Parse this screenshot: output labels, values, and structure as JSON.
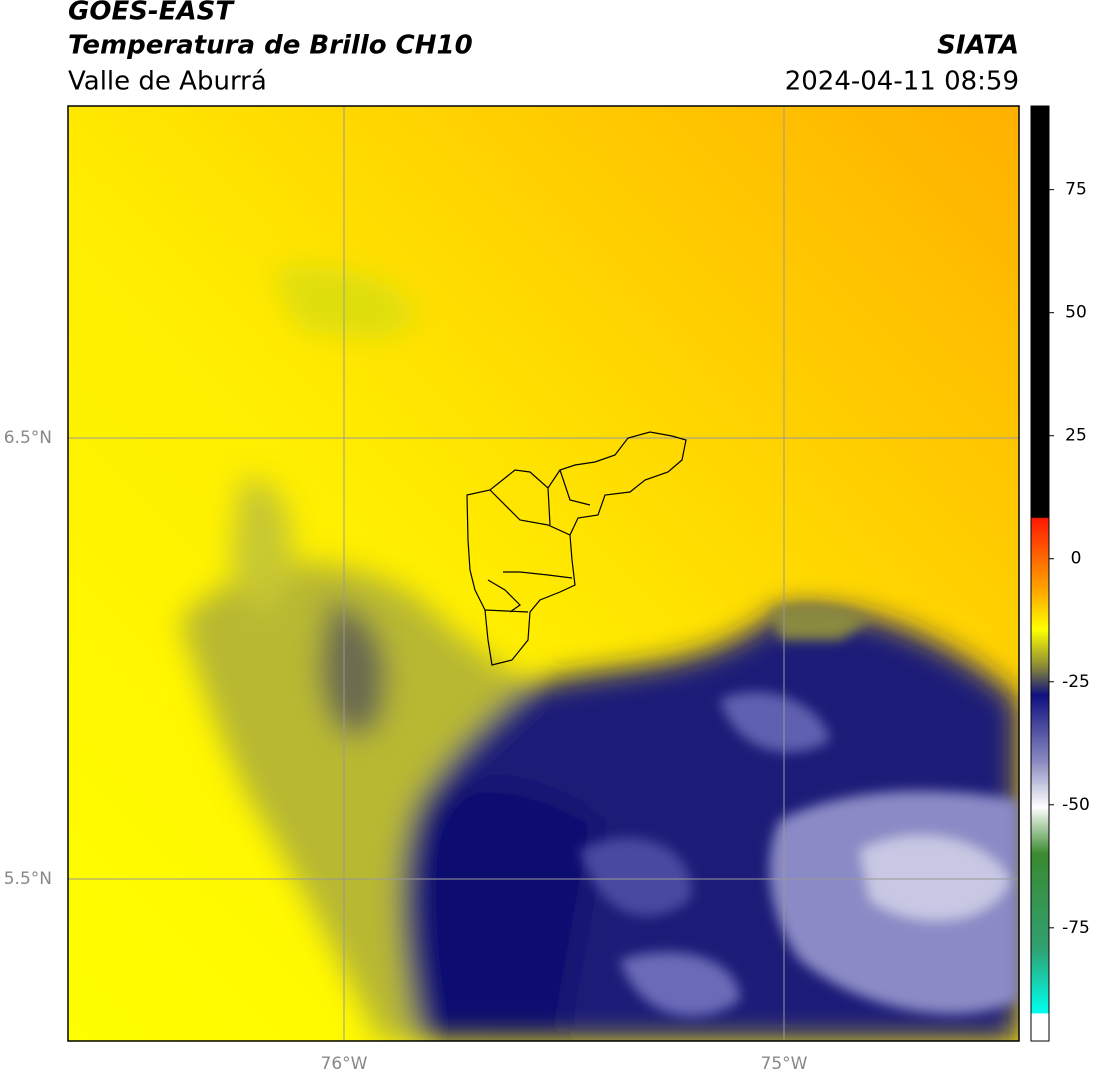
{
  "header": {
    "title": "GOES-EAST",
    "subtitle": "Temperatura de Brillo CH10",
    "region": "Valle de Aburrá",
    "source": "SIATA",
    "timestamp": "2024-04-11 08:59"
  },
  "map": {
    "lat_labels": [
      "6.5°N",
      "5.5°N"
    ],
    "lon_labels": [
      "76°W",
      "75°W"
    ]
  },
  "colorbar": {
    "lim": [
      -98,
      92
    ],
    "ticks": [
      75,
      50,
      25,
      0,
      -25,
      -50,
      -75
    ]
  }
}
